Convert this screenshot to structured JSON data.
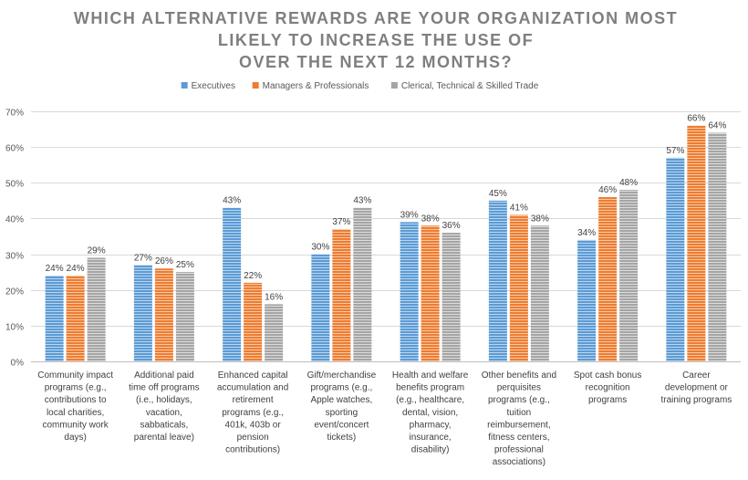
{
  "chart_data": {
    "type": "bar",
    "title_lines": [
      "WHICH ALTERNATIVE REWARDS ARE YOUR ORGANIZATION MOST",
      "LIKELY TO INCREASE THE USE OF",
      "OVER THE NEXT 12 MONTHS?"
    ],
    "ylim": [
      0,
      70
    ],
    "yticks": [
      0,
      10,
      20,
      30,
      40,
      50,
      60,
      70
    ],
    "ytick_labels": [
      "0%",
      "10%",
      "20%",
      "30%",
      "40%",
      "50%",
      "60%",
      "70%"
    ],
    "legend_position": "top-center",
    "categories": [
      [
        "Community impact",
        "programs (e.g.,",
        "contributions to",
        "local charities,",
        "community work",
        "days)"
      ],
      [
        "Additional paid",
        "time off programs",
        "(i.e., holidays,",
        "vacation,",
        "sabbaticals,",
        "parental leave)"
      ],
      [
        "Enhanced capital",
        "accumulation and",
        "retirement",
        "programs (e.g.,",
        "401k, 403b or",
        "pension",
        "contributions)"
      ],
      [
        "Gift/merchandise",
        "programs (e.g.,",
        "Apple watches,",
        "sporting",
        "event/concert",
        "tickets)"
      ],
      [
        "Health and welfare",
        "benefits program",
        "(e.g., healthcare,",
        "dental, vision,",
        "pharmacy,",
        "insurance,",
        "disability)"
      ],
      [
        "Other benefits and",
        "perquisites",
        "programs (e.g.,",
        "tuition",
        "reimbursement,",
        "fitness centers,",
        "professional",
        "associations)"
      ],
      [
        "Spot cash bonus",
        "recognition",
        "programs"
      ],
      [
        "Career",
        "development or",
        "training programs"
      ]
    ],
    "series": [
      {
        "name": "Executives",
        "color": "#5b9bd5",
        "values": [
          24,
          27,
          43,
          30,
          39,
          45,
          34,
          57
        ],
        "labels": [
          "24%",
          "27%",
          "43%",
          "30%",
          "39%",
          "45%",
          "34%",
          "57%"
        ]
      },
      {
        "name": "Managers & Professionals",
        "color": "#ed7d31",
        "values": [
          24,
          26,
          22,
          37,
          38,
          41,
          46,
          66
        ],
        "labels": [
          "24%",
          "26%",
          "22%",
          "37%",
          "38%",
          "41%",
          "46%",
          "66%"
        ]
      },
      {
        "name": "Clerical, Technical & Skilled Trade",
        "color": "#a5a5a5",
        "values": [
          29,
          25,
          16,
          43,
          36,
          38,
          48,
          64
        ],
        "labels": [
          "29%",
          "25%",
          "16%",
          "43%",
          "36%",
          "38%",
          "48%",
          "64%"
        ]
      }
    ]
  }
}
